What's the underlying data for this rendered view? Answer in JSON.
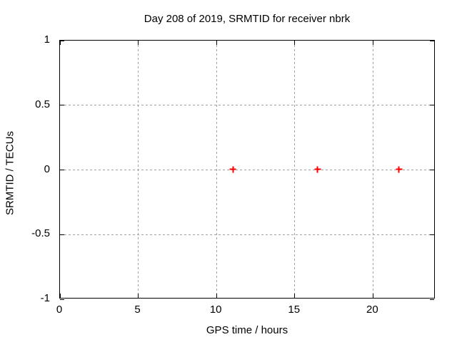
{
  "chart_data": {
    "type": "scatter",
    "title": "Day 208 of 2019, SRMTID for receiver nbrk",
    "xlabel": "GPS time / hours",
    "ylabel": "SRMTID / TECUs",
    "xlim": [
      0,
      24
    ],
    "ylim": [
      -1,
      1
    ],
    "x_ticks": [
      {
        "value": 0,
        "label": "0"
      },
      {
        "value": 5,
        "label": "5"
      },
      {
        "value": 10,
        "label": "10"
      },
      {
        "value": 15,
        "label": "15"
      },
      {
        "value": 20,
        "label": "20"
      }
    ],
    "y_ticks": [
      {
        "value": -1,
        "label": "-1"
      },
      {
        "value": -0.5,
        "label": "-0.5"
      },
      {
        "value": 0,
        "label": "0"
      },
      {
        "value": 0.5,
        "label": "0.5"
      },
      {
        "value": 1,
        "label": "1"
      }
    ],
    "grid": true,
    "legend": "none",
    "series": [
      {
        "marker": "plus",
        "color": "#ff0000",
        "points": [
          {
            "x": 11.1,
            "y": 0.0
          },
          {
            "x": 16.5,
            "y": 0.0
          },
          {
            "x": 21.7,
            "y": 0.0
          }
        ]
      }
    ],
    "colors": {
      "background": "#ffffff",
      "axis": "#000000",
      "grid": "#a0a0a0",
      "text": "#000000"
    }
  }
}
